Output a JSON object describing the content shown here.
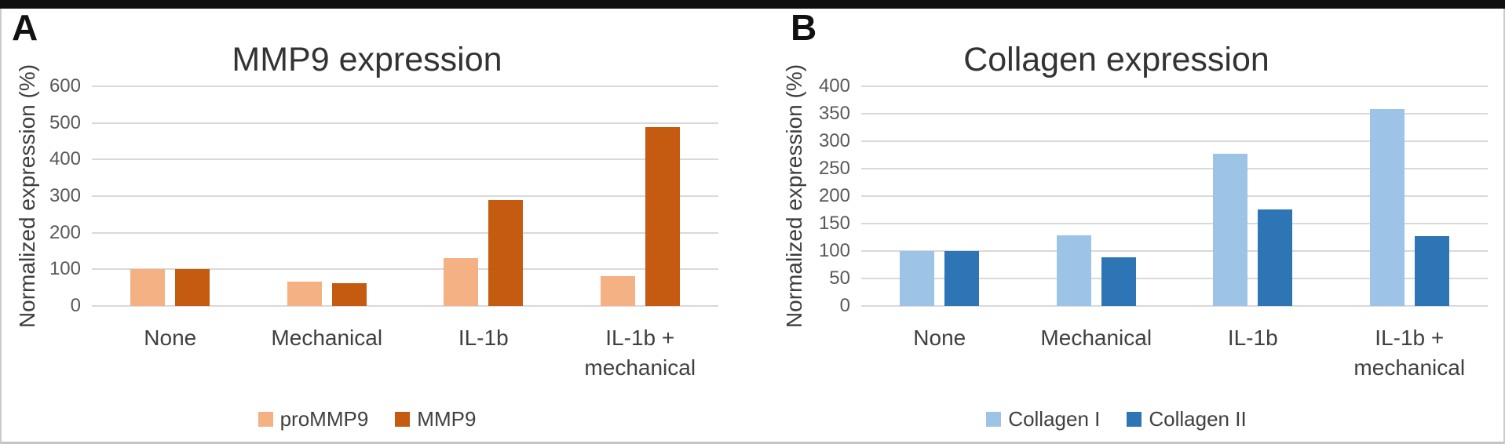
{
  "page": {
    "top_bar_color": "#0f0f0f",
    "background": "#ffffff",
    "gridline_color": "#d9d9d9"
  },
  "chart_data": [
    {
      "type": "bar",
      "panel_label": "A",
      "title": "MMP9 expression",
      "ylabel": "Normalized expression (%)",
      "xlabel": "",
      "categories": [
        "None",
        "Mechanical",
        "IL-1b",
        "IL-1b +\nmechanical"
      ],
      "series": [
        {
          "name": "proMMP9",
          "color": "#F4B183",
          "values": [
            100,
            67,
            130,
            82
          ]
        },
        {
          "name": "MMP9",
          "color": "#C55A11",
          "values": [
            100,
            62,
            290,
            488
          ]
        }
      ],
      "ylim": [
        0,
        600
      ],
      "ytick_step": 100,
      "grid": true,
      "legend_position": "bottom"
    },
    {
      "type": "bar",
      "panel_label": "B",
      "title": "Collagen expression",
      "ylabel": "Normalized expression (%)",
      "xlabel": "",
      "categories": [
        "None",
        "Mechanical",
        "IL-1b",
        "IL-1b +\nmechanical"
      ],
      "series": [
        {
          "name": "Collagen I",
          "color": "#9DC3E6",
          "values": [
            100,
            128,
            277,
            358
          ]
        },
        {
          "name": "Collagen II",
          "color": "#2E75B6",
          "values": [
            100,
            88,
            175,
            127
          ]
        }
      ],
      "ylim": [
        0,
        400
      ],
      "ytick_step": 50,
      "grid": true,
      "legend_position": "bottom"
    }
  ]
}
